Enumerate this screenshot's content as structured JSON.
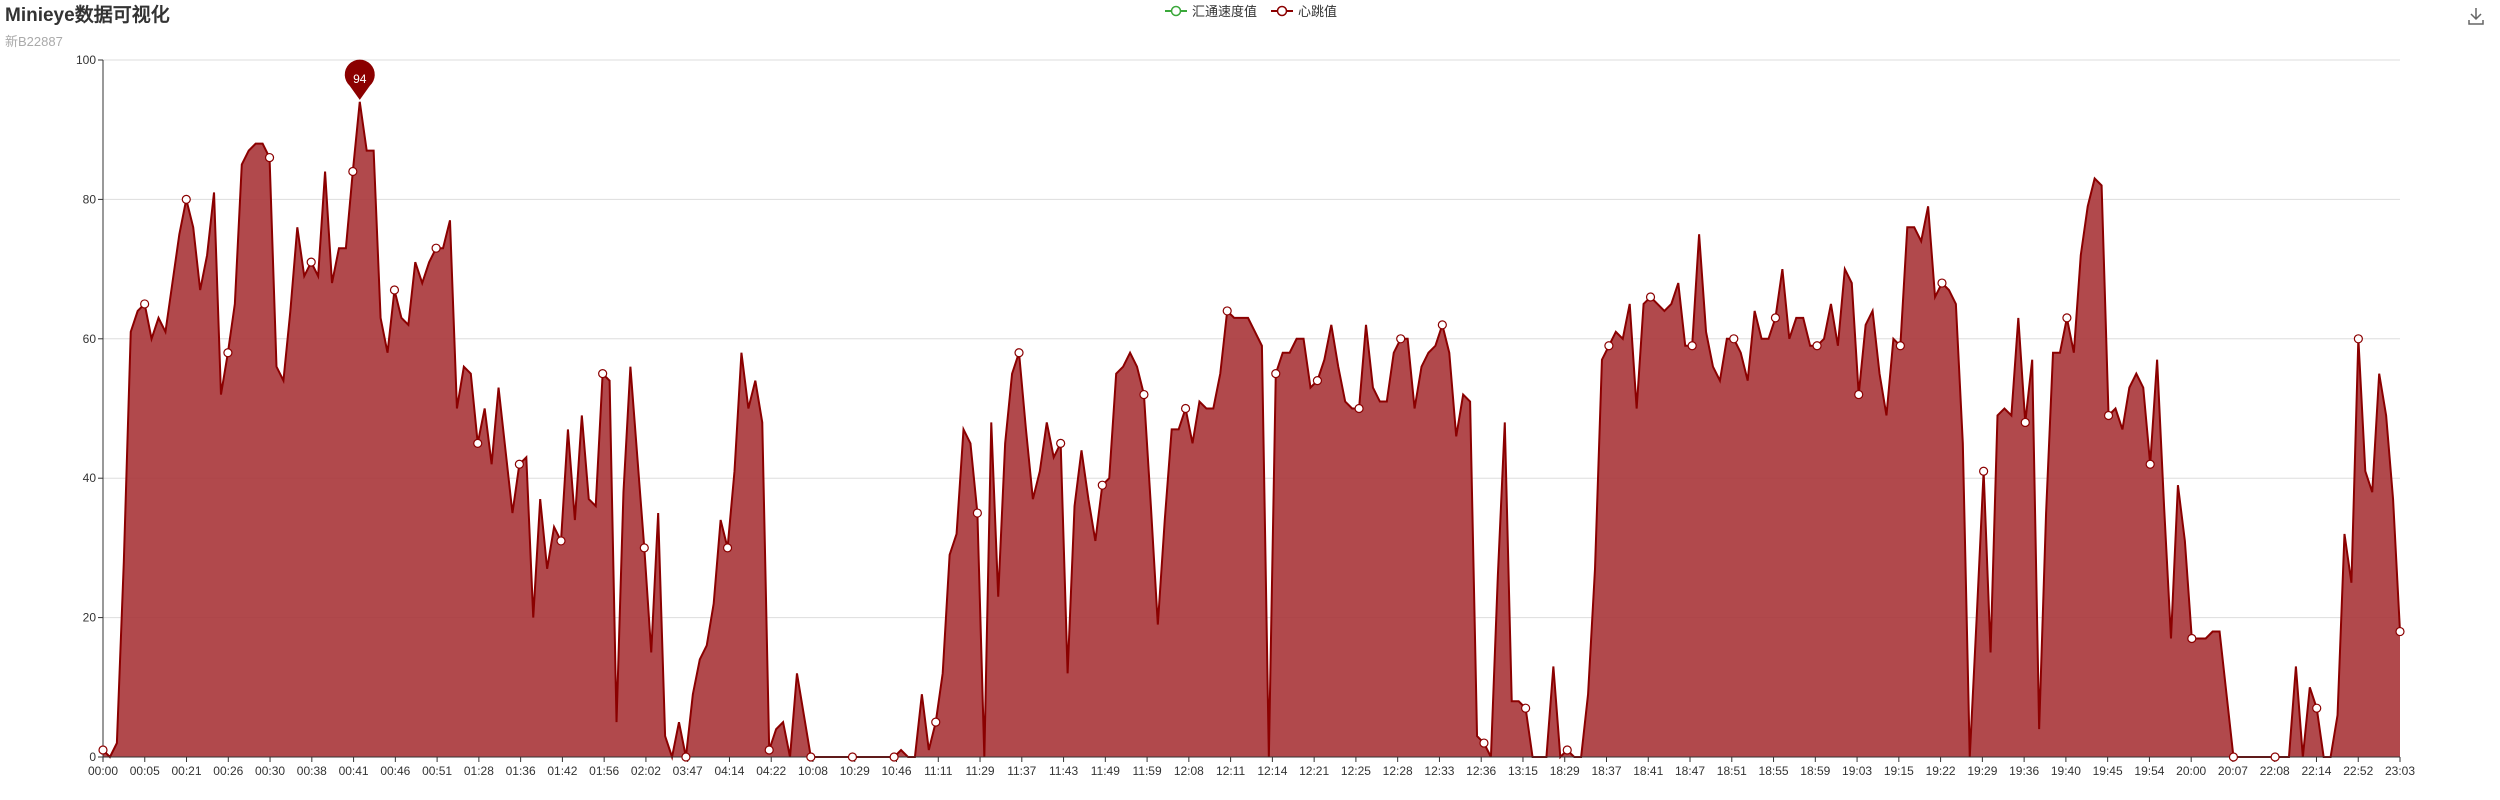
{
  "header": {
    "title": "Minieye数据可视化",
    "subtitle": "新B22887"
  },
  "toolbar": {
    "download_icon": "download-icon"
  },
  "colors": {
    "speed_series": "#3aa83a",
    "heart_series": "#8b0000",
    "heart_fill": "#a83538",
    "grid": "#dddddd",
    "axis": "#333333"
  },
  "chart_data": {
    "type": "area",
    "title": "Minieye数据可视化",
    "subtitle": "新B22887",
    "xlabel": "",
    "ylabel": "",
    "ylim": [
      0,
      100
    ],
    "y_ticks": [
      0,
      20,
      40,
      60,
      80,
      100
    ],
    "grid": true,
    "legend_position": "top-center",
    "x_labels": [
      "00:00",
      "00:05",
      "00:21",
      "00:26",
      "00:30",
      "00:38",
      "00:41",
      "00:46",
      "00:51",
      "01:28",
      "01:36",
      "01:42",
      "01:56",
      "02:02",
      "03:47",
      "04:14",
      "04:22",
      "10:08",
      "10:29",
      "10:46",
      "11:11",
      "11:29",
      "11:37",
      "11:43",
      "11:49",
      "11:59",
      "12:08",
      "12:11",
      "12:14",
      "12:21",
      "12:25",
      "12:28",
      "12:33",
      "12:36",
      "13:15",
      "18:29",
      "18:37",
      "18:41",
      "18:47",
      "18:51",
      "18:55",
      "18:59",
      "19:03",
      "19:15",
      "19:22",
      "19:29",
      "19:36",
      "19:40",
      "19:45",
      "19:54",
      "20:00",
      "20:07",
      "22:08",
      "22:14",
      "22:52",
      "23:03"
    ],
    "max_marker": {
      "value": 94,
      "label": "94"
    },
    "series": [
      {
        "name": "汇通速度值",
        "color": "#3aa83a",
        "values": []
      },
      {
        "name": "心跳值",
        "color": "#8b0000",
        "values": [
          1,
          0,
          2,
          28,
          61,
          64,
          65,
          60,
          63,
          61,
          68,
          75,
          80,
          76,
          67,
          72,
          81,
          52,
          58,
          65,
          85,
          87,
          88,
          88,
          86,
          56,
          54,
          64,
          76,
          69,
          71,
          69,
          84,
          68,
          73,
          73,
          84,
          94,
          87,
          87,
          63,
          58,
          67,
          63,
          62,
          71,
          68,
          71,
          73,
          73,
          77,
          50,
          56,
          55,
          45,
          50,
          42,
          53,
          44,
          35,
          42,
          43,
          20,
          37,
          27,
          33,
          31,
          47,
          34,
          49,
          37,
          36,
          55,
          54,
          5,
          38,
          56,
          43,
          30,
          15,
          35,
          3,
          0,
          5,
          0,
          9,
          14,
          16,
          22,
          34,
          30,
          41,
          58,
          50,
          54,
          48,
          1,
          4,
          5,
          0,
          12,
          6,
          0,
          0,
          0,
          0,
          0,
          0,
          0,
          0,
          0,
          0,
          0,
          0,
          0,
          1,
          0,
          0,
          9,
          1,
          5,
          12,
          29,
          32,
          47,
          45,
          35,
          0,
          48,
          23,
          45,
          55,
          58,
          47,
          37,
          41,
          48,
          43,
          45,
          12,
          36,
          44,
          37,
          31,
          39,
          40,
          55,
          56,
          58,
          56,
          52,
          36,
          19,
          34,
          47,
          47,
          50,
          45,
          51,
          50,
          50,
          55,
          64,
          63,
          63,
          63,
          61,
          59,
          0,
          55,
          58,
          58,
          60,
          60,
          53,
          54,
          57,
          62,
          56,
          51,
          50,
          50,
          62,
          53,
          51,
          51,
          58,
          60,
          60,
          50,
          56,
          58,
          59,
          62,
          58,
          46,
          52,
          51,
          3,
          2,
          0,
          26,
          48,
          8,
          8,
          7,
          0,
          0,
          0,
          13,
          0,
          1,
          0,
          0,
          9,
          27,
          57,
          59,
          61,
          60,
          65,
          50,
          65,
          66,
          65,
          64,
          65,
          68,
          59,
          59,
          75,
          61,
          56,
          54,
          60,
          60,
          58,
          54,
          64,
          60,
          60,
          63,
          70,
          60,
          63,
          63,
          59,
          59,
          60,
          65,
          59,
          70,
          68,
          52,
          62,
          64,
          55,
          49,
          60,
          59,
          76,
          76,
          74,
          79,
          66,
          68,
          67,
          65,
          45,
          0,
          20,
          41,
          15,
          49,
          50,
          49,
          63,
          48,
          57,
          4,
          35,
          58,
          58,
          63,
          58,
          72,
          79,
          83,
          82,
          49,
          50,
          47,
          53,
          55,
          53,
          42,
          57,
          36,
          17,
          39,
          31,
          17,
          17,
          17,
          18,
          18,
          9,
          0,
          0,
          0,
          0,
          0,
          0,
          0,
          0,
          0,
          13,
          0,
          10,
          7,
          0,
          0,
          6,
          32,
          25,
          60,
          41,
          38,
          55,
          49,
          37,
          18
        ]
      }
    ]
  }
}
